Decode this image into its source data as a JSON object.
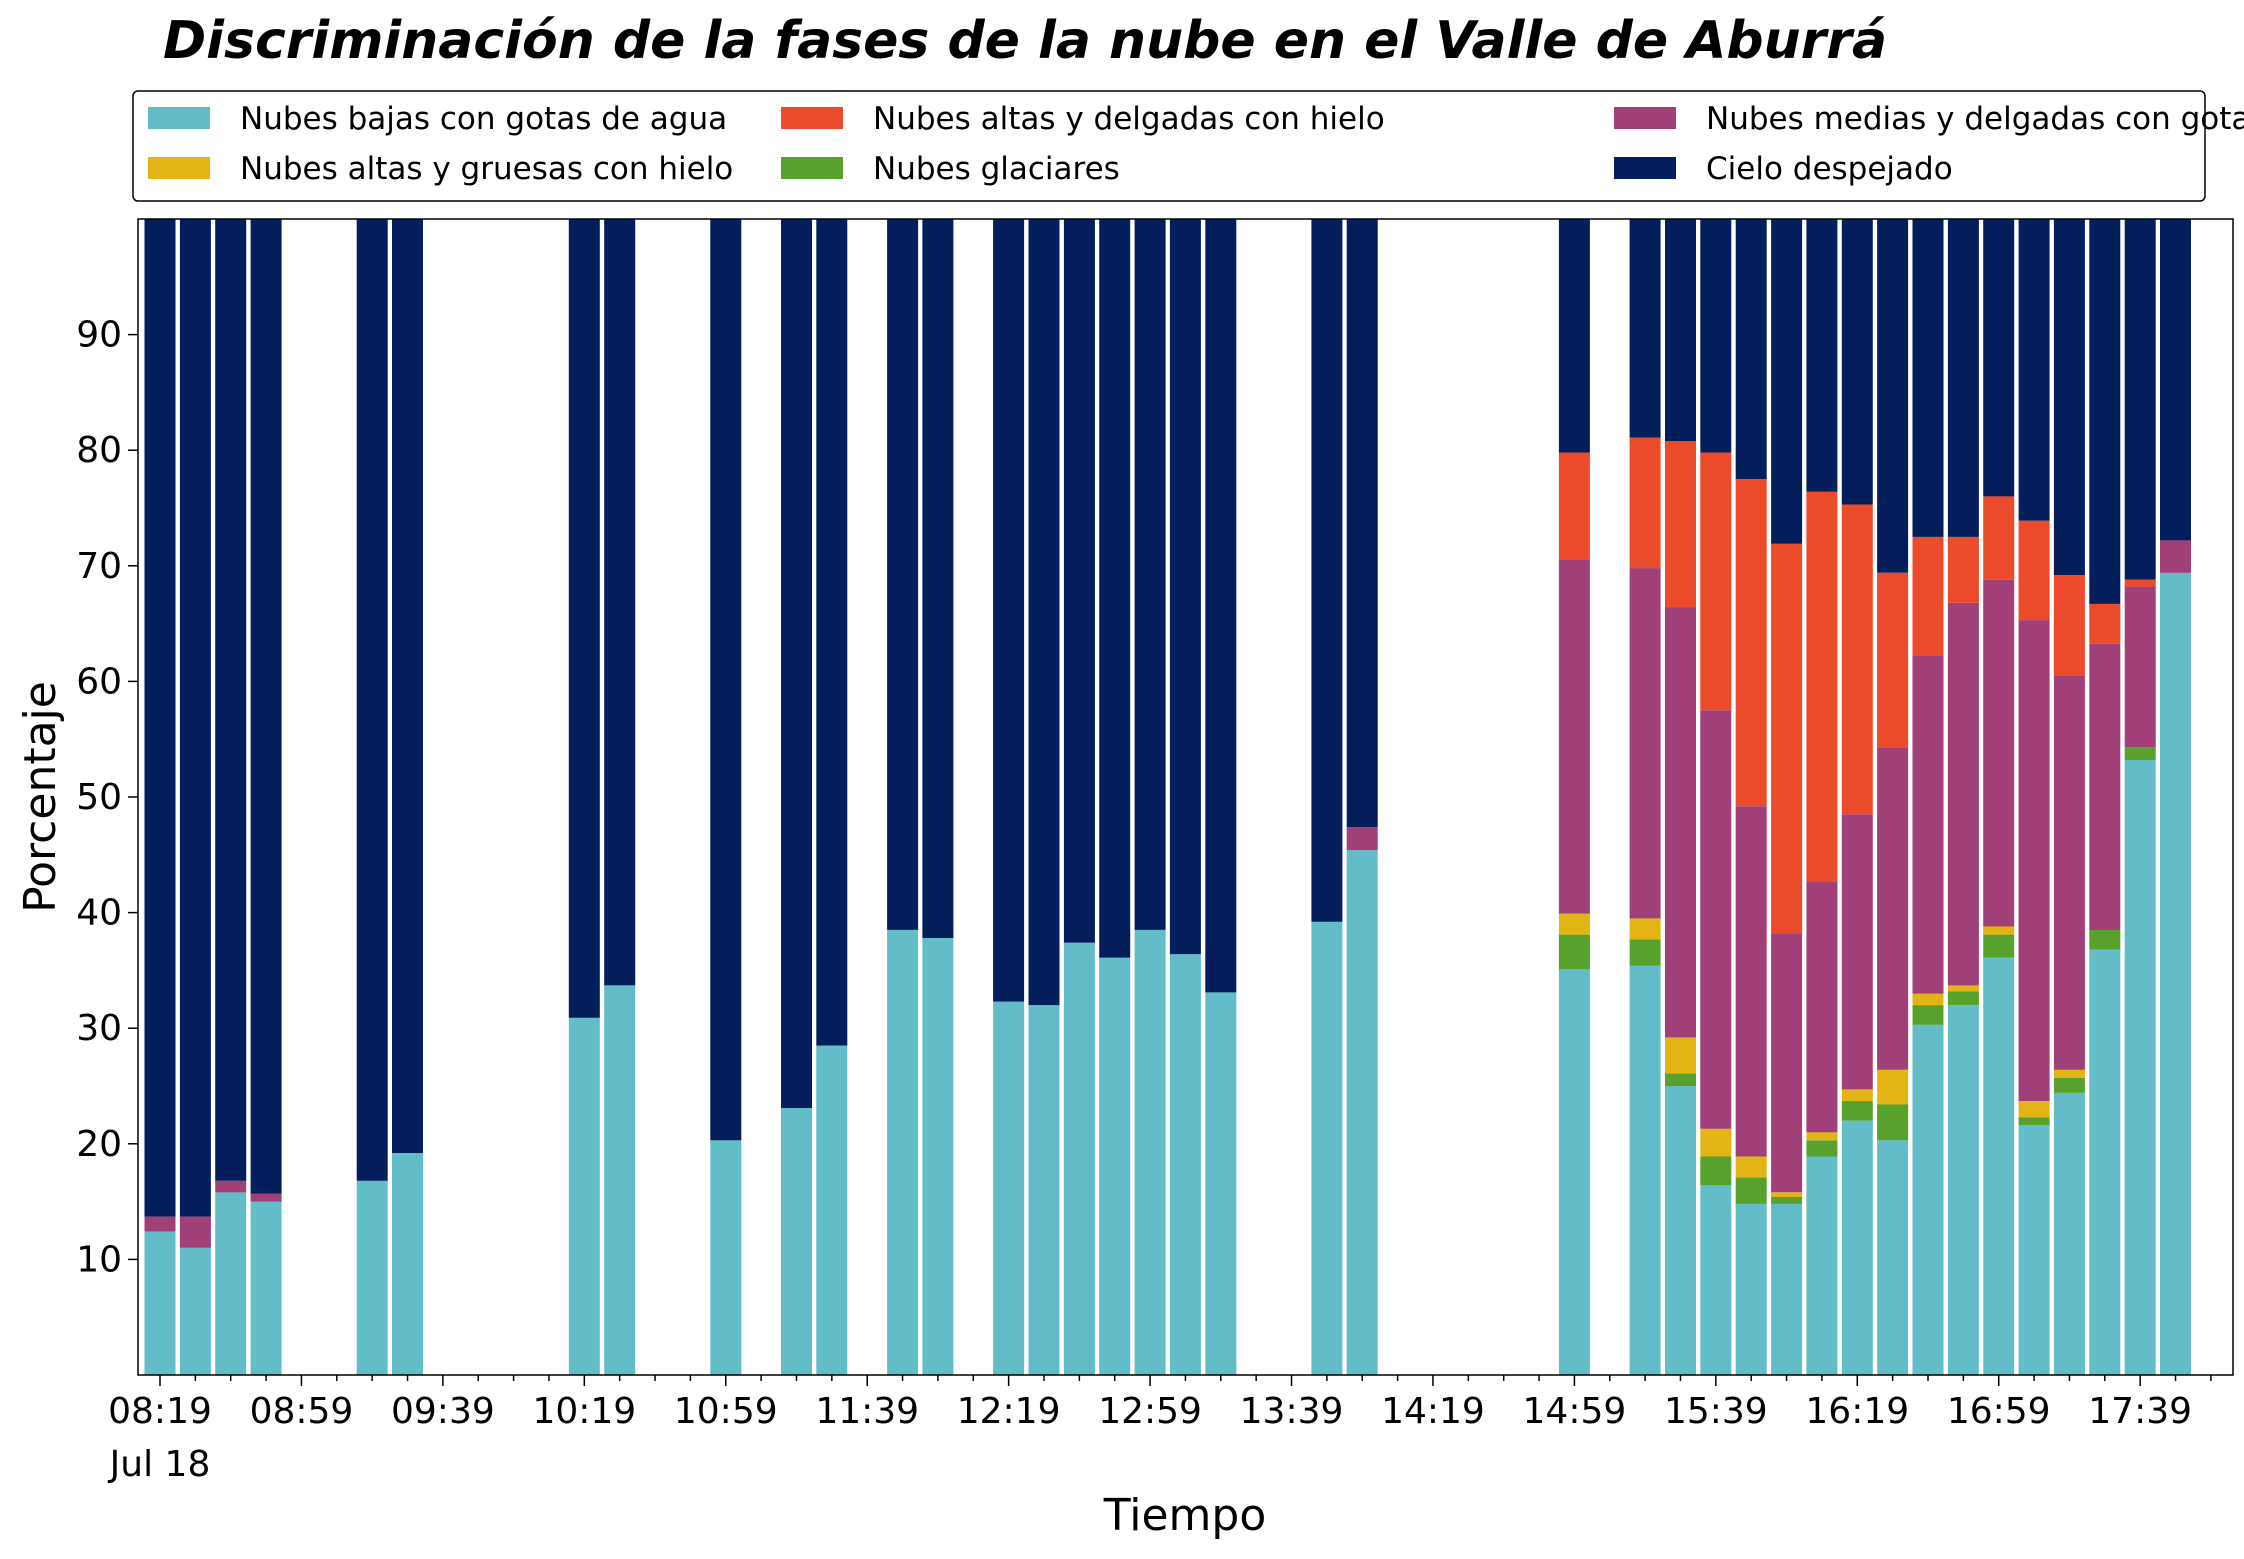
{
  "chart_data": {
    "type": "bar",
    "stacked": true,
    "title": "Discriminación de la fases de la nube en el Valle de Aburrá",
    "xlabel": "Tiempo",
    "ylabel": "Porcentaje",
    "ylim": [
      0,
      100
    ],
    "yticks": [
      10,
      20,
      30,
      40,
      50,
      60,
      70,
      80,
      90
    ],
    "x_start": "08:19",
    "x_step_minutes": 10,
    "slot_count": 59,
    "xtick_labels": [
      "08:19",
      "08:59",
      "09:39",
      "10:19",
      "10:59",
      "11:39",
      "12:19",
      "12:59",
      "13:39",
      "14:19",
      "14:59",
      "15:39",
      "16:19",
      "16:59",
      "17:39"
    ],
    "xtick_date": "Jul 18",
    "grid": false,
    "legend_position": "top",
    "legend_order": [
      0,
      2,
      4,
      1,
      3,
      5
    ],
    "colors": {
      "low_water": "#63bdc9",
      "glacier": "#59a12d",
      "high_thick_ice": "#e3b415",
      "mid_thin_water": "#a13f78",
      "high_thin_ice": "#eb4a2b",
      "clear_sky": "#041e5c"
    },
    "series": [
      {
        "key": "low_water",
        "name": "Nubes bajas con gotas de agua"
      },
      {
        "key": "glacier",
        "name": "Nubes glaciares"
      },
      {
        "key": "high_thick_ice",
        "name": "Nubes altas y gruesas con hielo"
      },
      {
        "key": "mid_thin_water",
        "name": "Nubes medias y delgadas con gotas de agua"
      },
      {
        "key": "high_thin_ice",
        "name": "Nubes altas y delgadas con hielo"
      },
      {
        "key": "clear_sky",
        "name": "Cielo despejado"
      }
    ],
    "bars": [
      {
        "time": "08:19",
        "low_water": 12.4,
        "glacier": 0,
        "high_thick_ice": 0,
        "mid_thin_water": 1.3,
        "high_thin_ice": 0,
        "clear_sky": 86.3
      },
      {
        "time": "08:29",
        "low_water": 11.0,
        "glacier": 0,
        "high_thick_ice": 0,
        "mid_thin_water": 2.7,
        "high_thin_ice": 0,
        "clear_sky": 86.3
      },
      {
        "time": "08:39",
        "low_water": 15.8,
        "glacier": 0,
        "high_thick_ice": 0,
        "mid_thin_water": 1.0,
        "high_thin_ice": 0,
        "clear_sky": 83.2
      },
      {
        "time": "08:49",
        "low_water": 15.0,
        "glacier": 0,
        "high_thick_ice": 0,
        "mid_thin_water": 0.7,
        "high_thin_ice": 0,
        "clear_sky": 84.3
      },
      {
        "time": "09:19",
        "low_water": 16.8,
        "glacier": 0,
        "high_thick_ice": 0,
        "mid_thin_water": 0,
        "high_thin_ice": 0,
        "clear_sky": 83.2
      },
      {
        "time": "09:29",
        "low_water": 19.2,
        "glacier": 0,
        "high_thick_ice": 0,
        "mid_thin_water": 0,
        "high_thin_ice": 0,
        "clear_sky": 80.8
      },
      {
        "time": "10:19",
        "low_water": 30.9,
        "glacier": 0,
        "high_thick_ice": 0,
        "mid_thin_water": 0,
        "high_thin_ice": 0,
        "clear_sky": 69.1
      },
      {
        "time": "10:29",
        "low_water": 33.7,
        "glacier": 0,
        "high_thick_ice": 0,
        "mid_thin_water": 0,
        "high_thin_ice": 0,
        "clear_sky": 66.3
      },
      {
        "time": "10:59",
        "low_water": 20.3,
        "glacier": 0,
        "high_thick_ice": 0,
        "mid_thin_water": 0,
        "high_thin_ice": 0,
        "clear_sky": 79.7
      },
      {
        "time": "11:19",
        "low_water": 23.1,
        "glacier": 0,
        "high_thick_ice": 0,
        "mid_thin_water": 0,
        "high_thin_ice": 0,
        "clear_sky": 76.9
      },
      {
        "time": "11:29",
        "low_water": 28.5,
        "glacier": 0,
        "high_thick_ice": 0,
        "mid_thin_water": 0,
        "high_thin_ice": 0,
        "clear_sky": 71.5
      },
      {
        "time": "11:49",
        "low_water": 38.5,
        "glacier": 0,
        "high_thick_ice": 0,
        "mid_thin_water": 0,
        "high_thin_ice": 0,
        "clear_sky": 61.5
      },
      {
        "time": "11:59",
        "low_water": 37.8,
        "glacier": 0,
        "high_thick_ice": 0,
        "mid_thin_water": 0,
        "high_thin_ice": 0,
        "clear_sky": 62.2
      },
      {
        "time": "12:19",
        "low_water": 32.3,
        "glacier": 0,
        "high_thick_ice": 0,
        "mid_thin_water": 0,
        "high_thin_ice": 0,
        "clear_sky": 67.7
      },
      {
        "time": "12:29",
        "low_water": 32.0,
        "glacier": 0,
        "high_thick_ice": 0,
        "mid_thin_water": 0,
        "high_thin_ice": 0,
        "clear_sky": 68.0
      },
      {
        "time": "12:39",
        "low_water": 37.4,
        "glacier": 0,
        "high_thick_ice": 0,
        "mid_thin_water": 0,
        "high_thin_ice": 0,
        "clear_sky": 62.6
      },
      {
        "time": "12:49",
        "low_water": 36.1,
        "glacier": 0,
        "high_thick_ice": 0,
        "mid_thin_water": 0,
        "high_thin_ice": 0,
        "clear_sky": 63.9
      },
      {
        "time": "12:59",
        "low_water": 38.5,
        "glacier": 0,
        "high_thick_ice": 0,
        "mid_thin_water": 0,
        "high_thin_ice": 0,
        "clear_sky": 61.5
      },
      {
        "time": "13:09",
        "low_water": 36.4,
        "glacier": 0,
        "high_thick_ice": 0,
        "mid_thin_water": 0,
        "high_thin_ice": 0,
        "clear_sky": 63.6
      },
      {
        "time": "13:19",
        "low_water": 33.1,
        "glacier": 0,
        "high_thick_ice": 0,
        "mid_thin_water": 0,
        "high_thin_ice": 0,
        "clear_sky": 66.9
      },
      {
        "time": "13:49",
        "low_water": 39.2,
        "glacier": 0,
        "high_thick_ice": 0,
        "mid_thin_water": 0,
        "high_thin_ice": 0,
        "clear_sky": 60.8
      },
      {
        "time": "13:59",
        "low_water": 45.4,
        "glacier": 0,
        "high_thick_ice": 0,
        "mid_thin_water": 2.0,
        "high_thin_ice": 0,
        "clear_sky": 52.6
      },
      {
        "time": "14:59",
        "low_water": 35.1,
        "glacier": 3.0,
        "high_thick_ice": 1.8,
        "mid_thin_water": 30.6,
        "high_thin_ice": 9.3,
        "clear_sky": 20.2
      },
      {
        "time": "15:19",
        "low_water": 35.4,
        "glacier": 2.3,
        "high_thick_ice": 1.8,
        "mid_thin_water": 30.3,
        "high_thin_ice": 11.3,
        "clear_sky": 18.9
      },
      {
        "time": "15:29",
        "low_water": 25.0,
        "glacier": 1.1,
        "high_thick_ice": 3.1,
        "mid_thin_water": 37.2,
        "high_thin_ice": 14.4,
        "clear_sky": 19.2
      },
      {
        "time": "15:39",
        "low_water": 16.4,
        "glacier": 2.5,
        "high_thick_ice": 2.4,
        "mid_thin_water": 36.2,
        "high_thin_ice": 22.3,
        "clear_sky": 20.2
      },
      {
        "time": "15:49",
        "low_water": 14.8,
        "glacier": 2.3,
        "high_thick_ice": 1.8,
        "mid_thin_water": 30.3,
        "high_thin_ice": 28.3,
        "clear_sky": 22.5
      },
      {
        "time": "15:59",
        "low_water": 14.8,
        "glacier": 0.6,
        "high_thick_ice": 0.4,
        "mid_thin_water": 22.4,
        "high_thin_ice": 33.7,
        "clear_sky": 28.1
      },
      {
        "time": "16:09",
        "low_water": 18.9,
        "glacier": 1.4,
        "high_thick_ice": 0.7,
        "mid_thin_water": 21.7,
        "high_thin_ice": 33.7,
        "clear_sky": 23.6
      },
      {
        "time": "16:19",
        "low_water": 22.0,
        "glacier": 1.7,
        "high_thick_ice": 1.0,
        "mid_thin_water": 23.8,
        "high_thin_ice": 26.8,
        "clear_sky": 24.7
      },
      {
        "time": "16:29",
        "low_water": 20.3,
        "glacier": 3.1,
        "high_thick_ice": 3.0,
        "mid_thin_water": 27.9,
        "high_thin_ice": 15.1,
        "clear_sky": 30.6
      },
      {
        "time": "16:39",
        "low_water": 30.3,
        "glacier": 1.7,
        "high_thick_ice": 1.0,
        "mid_thin_water": 29.2,
        "high_thin_ice": 10.3,
        "clear_sky": 27.5
      },
      {
        "time": "16:49",
        "low_water": 32.0,
        "glacier": 1.2,
        "high_thick_ice": 0.5,
        "mid_thin_water": 33.1,
        "high_thin_ice": 5.7,
        "clear_sky": 27.5
      },
      {
        "time": "16:59",
        "low_water": 36.1,
        "glacier": 2.0,
        "high_thick_ice": 0.7,
        "mid_thin_water": 30.0,
        "high_thin_ice": 7.2,
        "clear_sky": 24.0
      },
      {
        "time": "17:09",
        "low_water": 21.6,
        "glacier": 0.7,
        "high_thick_ice": 1.4,
        "mid_thin_water": 41.6,
        "high_thin_ice": 8.6,
        "clear_sky": 26.1
      },
      {
        "time": "17:19",
        "low_water": 24.4,
        "glacier": 1.3,
        "high_thick_ice": 0.7,
        "mid_thin_water": 34.1,
        "high_thin_ice": 8.7,
        "clear_sky": 30.8
      },
      {
        "time": "17:29",
        "low_water": 36.8,
        "glacier": 1.7,
        "high_thick_ice": 0,
        "mid_thin_water": 24.8,
        "high_thin_ice": 3.4,
        "clear_sky": 33.3
      },
      {
        "time": "17:39",
        "low_water": 53.2,
        "glacier": 1.1,
        "high_thick_ice": 0,
        "mid_thin_water": 13.9,
        "high_thin_ice": 0.6,
        "clear_sky": 31.2
      },
      {
        "time": "17:49",
        "low_water": 69.4,
        "glacier": 0,
        "high_thick_ice": 0,
        "mid_thin_water": 2.8,
        "high_thin_ice": 0,
        "clear_sky": 27.8
      }
    ]
  }
}
